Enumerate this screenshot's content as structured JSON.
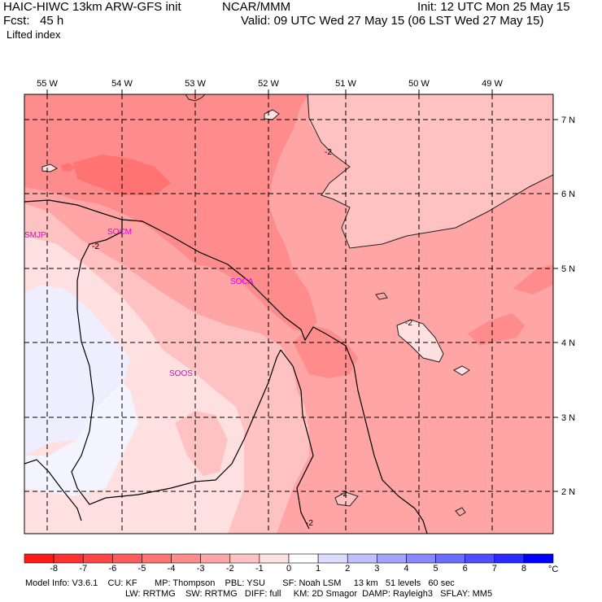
{
  "header": {
    "model_title": "HAIC-HIWC 13km ARW-GFS init",
    "org": "NCAR/MMM",
    "init": "Init: 12 UTC Mon 25 May 15",
    "forecast": "Fcst:   45 h",
    "valid": "Valid: 09 UTC Wed 27 May 15 (06 LST Wed 27 May 15)",
    "field": "Lifted index"
  },
  "map": {
    "lon_labels": [
      "55 W",
      "54 W",
      "53 W",
      "52 W",
      "51 W",
      "50 W",
      "49 W"
    ],
    "lat_labels": [
      "7 N",
      "6 N",
      "5 N",
      "4 N",
      "3 N",
      "2 N"
    ],
    "stations": [
      "SMJP",
      "SOCM",
      "SOCA",
      "SOOS"
    ],
    "contour_labels": [
      "-2",
      "-2",
      "-2",
      "-2",
      "-2"
    ]
  },
  "colorbar": {
    "labels": [
      "-8",
      "-7",
      "-6",
      "-5",
      "-4",
      "-3",
      "-2",
      "-1",
      "0",
      "1",
      "2",
      "3",
      "4",
      "5",
      "6",
      "7",
      "8"
    ],
    "unit": "°C",
    "colors": [
      "#ff1a1a",
      "#ff3030",
      "#ff4646",
      "#ff5c5c",
      "#ff7373",
      "#ff8c8c",
      "#ffa5a5",
      "#ffc2c2",
      "#ffe0e0",
      "#ffffff",
      "#dcdcff",
      "#c0c0ff",
      "#a4a4ff",
      "#8888ff",
      "#6c6cff",
      "#4e4eff",
      "#2a2aff",
      "#0000ff"
    ]
  },
  "footer": {
    "line1": "Model Info: V3.6.1    CU: KF       MP: Thompson    PBL: YSU       SF: Noah LSM     13 km   51 levels   60 sec",
    "line2": "LW: RRTMG    SW: RRTMG   DIFF: full     KM: 2D Smagor  DAMP: Rayleigh3   SFLAY: MM5"
  }
}
